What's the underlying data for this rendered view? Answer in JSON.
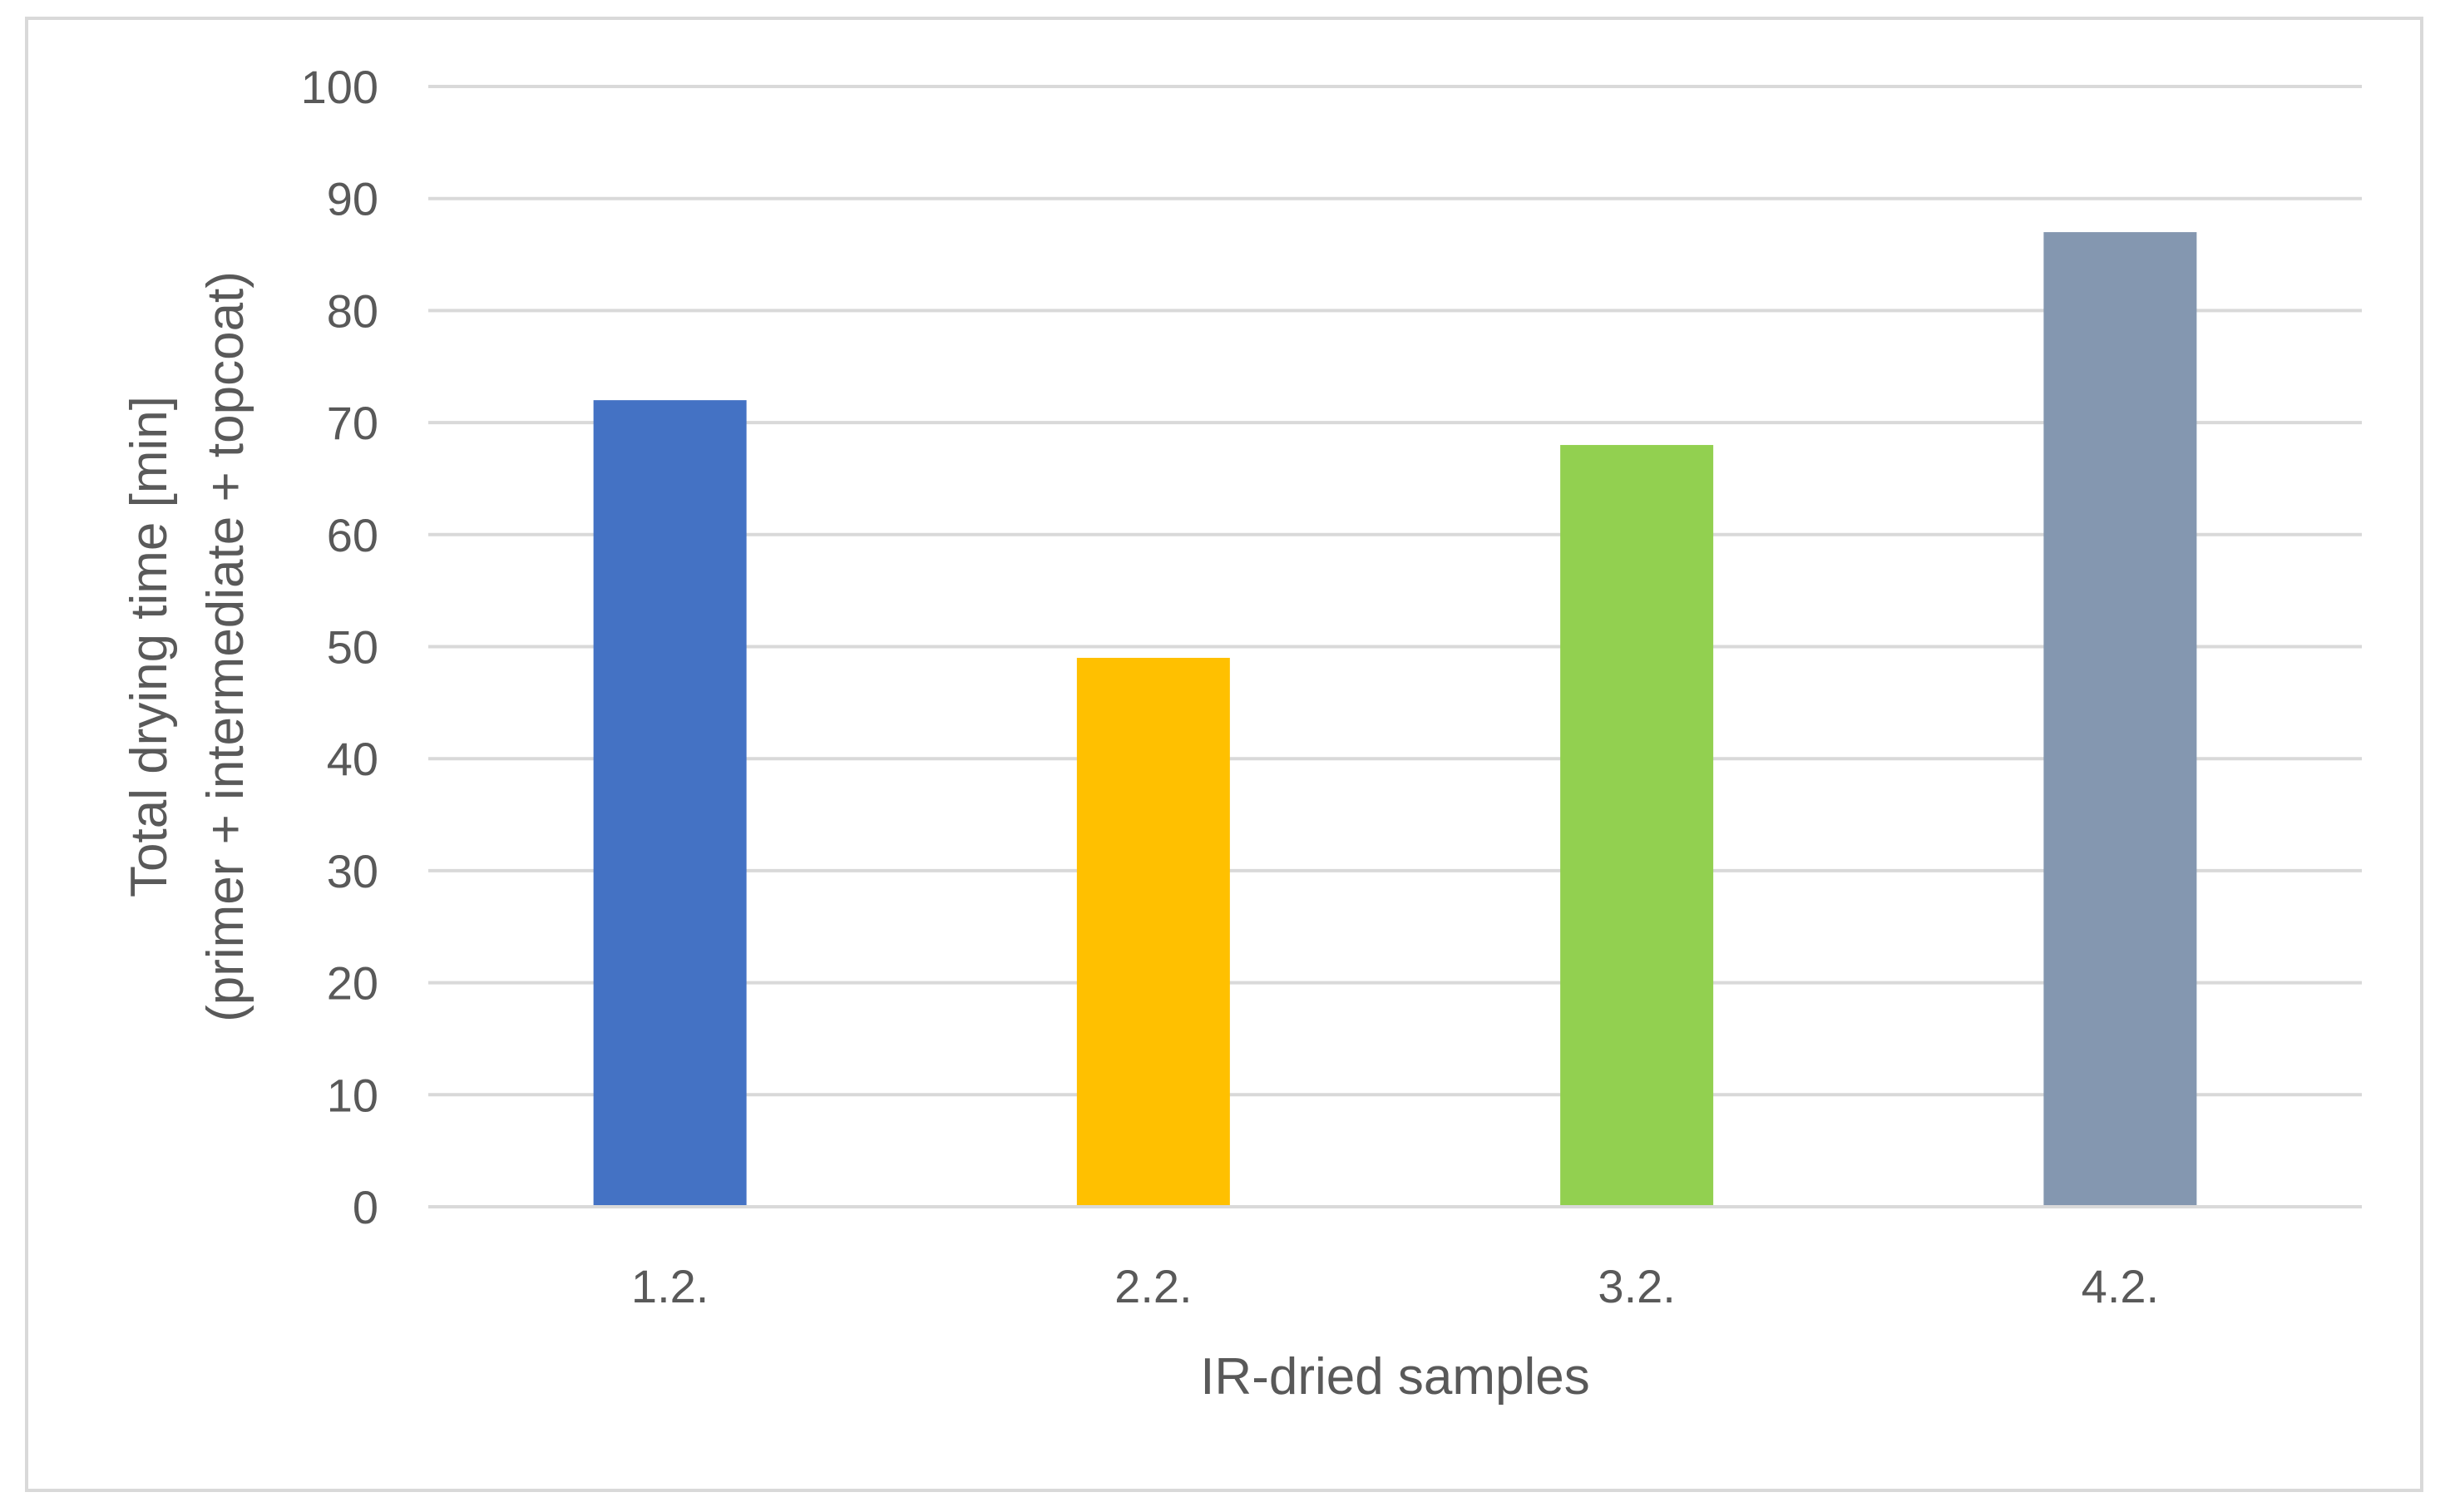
{
  "chart_data": {
    "type": "bar",
    "title": "",
    "categories": [
      "1.2.",
      "2.2.",
      "3.2.",
      "4.2."
    ],
    "values": [
      72,
      49,
      68,
      87
    ],
    "colors": [
      "#4472c4",
      "#ffc000",
      "#92d050",
      "#8497b0"
    ],
    "xlabel": "IR-dried samples",
    "ylabel_line1": "Total drying time [min]",
    "ylabel_line2": "(primer + intermediate + topcoat)",
    "ylim": [
      0,
      100
    ],
    "yticks": [
      0,
      10,
      20,
      30,
      40,
      50,
      60,
      70,
      80,
      90,
      100
    ],
    "grid": true,
    "legend": "none",
    "gridline_color": "#d9d9d9",
    "axis_line_color": "#d9d9d9"
  }
}
